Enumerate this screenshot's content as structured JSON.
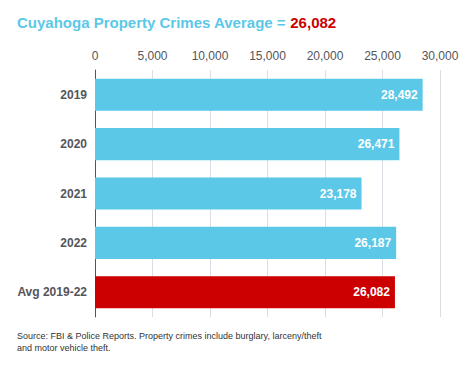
{
  "chart_data": {
    "type": "bar",
    "orientation": "horizontal",
    "title": [
      {
        "text": "Cuyahoga Property Crimes Average = ",
        "color": "#5BC8E8"
      },
      {
        "text": "26,082",
        "color": "#CC0000"
      }
    ],
    "annotations": [
      "Source: FBI & Police Reports. Property crimes include burglary, larceny/theft\nand motor vehicle theft."
    ],
    "categories": [
      "2019",
      "2020",
      "2021",
      "2022",
      "Avg 2019-22"
    ],
    "values": [
      28492,
      26471,
      23178,
      26187,
      26082
    ],
    "value_labels": [
      "28,492",
      "26,471",
      "23,178",
      "26,187",
      "26,082"
    ],
    "data_labels": true,
    "colors": [
      "#5BC8E8",
      "#5BC8E8",
      "#5BC8E8",
      "#5BC8E8",
      "#CC0000"
    ],
    "xlim": [
      0,
      30000
    ],
    "xticks": [
      0,
      {
        "value": 5000,
        "label": "5,000"
      },
      {
        "value": 10000,
        "label": "10,000"
      },
      {
        "value": 15000,
        "label": "15,000"
      },
      {
        "value": 20000,
        "label": "20,000"
      },
      {
        "value": 25000,
        "label": "25,000"
      },
      {
        "value": 30000,
        "label": "30,000"
      }
    ],
    "grid": true
  }
}
